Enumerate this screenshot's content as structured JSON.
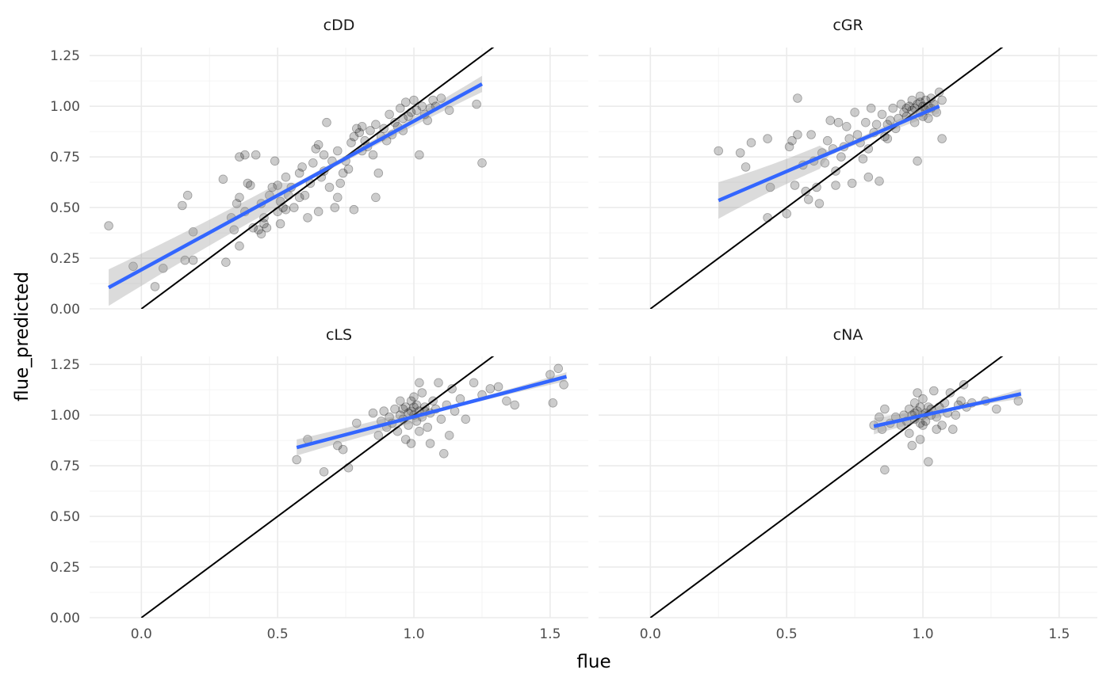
{
  "chart_data": {
    "type": "scatter",
    "xlabel": "flue",
    "ylabel": "flue_predicted",
    "xlim": [
      -0.19,
      1.64
    ],
    "ylim": [
      0.0,
      1.29
    ],
    "x_ticks": [
      0.0,
      0.5,
      1.0,
      1.5
    ],
    "x_tick_labels": [
      "0.0",
      "0.5",
      "1.0",
      "1.5"
    ],
    "y_ticks": [
      0.0,
      0.25,
      0.5,
      0.75,
      1.0,
      1.25
    ],
    "y_tick_labels": [
      "0.00",
      "0.25",
      "0.50",
      "0.75",
      "1.00",
      "1.25"
    ],
    "grid": true,
    "reference_line": {
      "slope": 1,
      "intercept": 0,
      "color": "#000000"
    },
    "fit_color": "#3366ff",
    "band_color": "#999999",
    "point_color": "#000000",
    "panels": [
      {
        "name": "cDD",
        "fit": {
          "x": [
            -0.12,
            1.25
          ],
          "y": [
            0.105,
            1.11
          ]
        },
        "band_width": [
          0.045,
          0.012,
          0.04
        ],
        "points": [
          [
            -0.12,
            0.41
          ],
          [
            -0.03,
            0.21
          ],
          [
            0.05,
            0.11
          ],
          [
            0.08,
            0.2
          ],
          [
            0.15,
            0.51
          ],
          [
            0.17,
            0.56
          ],
          [
            0.16,
            0.24
          ],
          [
            0.19,
            0.24
          ],
          [
            0.19,
            0.38
          ],
          [
            0.3,
            0.64
          ],
          [
            0.31,
            0.23
          ],
          [
            0.34,
            0.39
          ],
          [
            0.35,
            0.52
          ],
          [
            0.36,
            0.55
          ],
          [
            0.36,
            0.75
          ],
          [
            0.38,
            0.76
          ],
          [
            0.36,
            0.31
          ],
          [
            0.38,
            0.48
          ],
          [
            0.39,
            0.62
          ],
          [
            0.4,
            0.61
          ],
          [
            0.41,
            0.4
          ],
          [
            0.42,
            0.76
          ],
          [
            0.43,
            0.39
          ],
          [
            0.44,
            0.52
          ],
          [
            0.44,
            0.37
          ],
          [
            0.45,
            0.45
          ],
          [
            0.46,
            0.4
          ],
          [
            0.47,
            0.56
          ],
          [
            0.48,
            0.6
          ],
          [
            0.49,
            0.73
          ],
          [
            0.5,
            0.48
          ],
          [
            0.5,
            0.61
          ],
          [
            0.51,
            0.42
          ],
          [
            0.51,
            0.53
          ],
          [
            0.52,
            0.5
          ],
          [
            0.53,
            0.65
          ],
          [
            0.54,
            0.56
          ],
          [
            0.55,
            0.6
          ],
          [
            0.56,
            0.5
          ],
          [
            0.58,
            0.67
          ],
          [
            0.59,
            0.7
          ],
          [
            0.6,
            0.56
          ],
          [
            0.61,
            0.45
          ],
          [
            0.62,
            0.62
          ],
          [
            0.63,
            0.72
          ],
          [
            0.64,
            0.79
          ],
          [
            0.65,
            0.81
          ],
          [
            0.65,
            0.48
          ],
          [
            0.66,
            0.65
          ],
          [
            0.67,
            0.76
          ],
          [
            0.68,
            0.92
          ],
          [
            0.69,
            0.6
          ],
          [
            0.7,
            0.73
          ],
          [
            0.71,
            0.5
          ],
          [
            0.72,
            0.78
          ],
          [
            0.73,
            0.62
          ],
          [
            0.74,
            0.67
          ],
          [
            0.75,
            0.73
          ],
          [
            0.76,
            0.69
          ],
          [
            0.77,
            0.82
          ],
          [
            0.78,
            0.85
          ],
          [
            0.78,
            0.49
          ],
          [
            0.79,
            0.89
          ],
          [
            0.8,
            0.87
          ],
          [
            0.81,
            0.78
          ],
          [
            0.82,
            0.83
          ],
          [
            0.83,
            0.8
          ],
          [
            0.84,
            0.88
          ],
          [
            0.85,
            0.76
          ],
          [
            0.86,
            0.91
          ],
          [
            0.86,
            0.55
          ],
          [
            0.87,
            0.67
          ],
          [
            0.88,
            0.85
          ],
          [
            0.89,
            0.89
          ],
          [
            0.9,
            0.83
          ],
          [
            0.91,
            0.96
          ],
          [
            0.92,
            0.86
          ],
          [
            0.93,
            0.92
          ],
          [
            0.94,
            0.9
          ],
          [
            0.95,
            0.99
          ],
          [
            0.96,
            0.94
          ],
          [
            0.97,
            1.02
          ],
          [
            0.98,
            0.95
          ],
          [
            0.99,
            0.97
          ],
          [
            1.0,
            1.03
          ],
          [
            1.01,
            0.98
          ],
          [
            1.02,
            0.76
          ],
          [
            1.03,
            1.0
          ],
          [
            1.04,
            0.96
          ],
          [
            1.05,
            0.93
          ],
          [
            1.06,
            0.99
          ],
          [
            1.07,
            1.03
          ],
          [
            1.08,
            1.0
          ],
          [
            1.1,
            1.04
          ],
          [
            1.13,
            0.98
          ],
          [
            1.23,
            1.01
          ],
          [
            1.25,
            0.72
          ],
          [
            0.33,
            0.45
          ],
          [
            0.58,
            0.55
          ],
          [
            0.96,
            0.88
          ],
          [
            0.72,
            0.55
          ],
          [
            0.45,
            0.42
          ],
          [
            0.67,
            0.68
          ],
          [
            0.81,
            0.9
          ],
          [
            0.53,
            0.49
          ]
        ]
      },
      {
        "name": "cGR",
        "fit": {
          "x": [
            0.25,
            1.06
          ],
          "y": [
            0.535,
            1.0
          ]
        },
        "band_width": [
          0.045,
          0.012,
          0.035
        ],
        "points": [
          [
            0.25,
            0.78
          ],
          [
            0.33,
            0.77
          ],
          [
            0.35,
            0.7
          ],
          [
            0.37,
            0.82
          ],
          [
            0.43,
            0.84
          ],
          [
            0.43,
            0.45
          ],
          [
            0.44,
            0.6
          ],
          [
            0.5,
            0.47
          ],
          [
            0.51,
            0.8
          ],
          [
            0.52,
            0.83
          ],
          [
            0.53,
            0.61
          ],
          [
            0.54,
            0.86
          ],
          [
            0.54,
            1.04
          ],
          [
            0.56,
            0.71
          ],
          [
            0.57,
            0.58
          ],
          [
            0.58,
            0.54
          ],
          [
            0.6,
            0.73
          ],
          [
            0.61,
            0.6
          ],
          [
            0.62,
            0.52
          ],
          [
            0.63,
            0.77
          ],
          [
            0.64,
            0.72
          ],
          [
            0.65,
            0.83
          ],
          [
            0.66,
            0.93
          ],
          [
            0.67,
            0.79
          ],
          [
            0.68,
            0.68
          ],
          [
            0.69,
            0.92
          ],
          [
            0.7,
            0.75
          ],
          [
            0.71,
            0.8
          ],
          [
            0.72,
            0.9
          ],
          [
            0.73,
            0.84
          ],
          [
            0.74,
            0.62
          ],
          [
            0.75,
            0.97
          ],
          [
            0.76,
            0.86
          ],
          [
            0.77,
            0.82
          ],
          [
            0.78,
            0.74
          ],
          [
            0.79,
            0.92
          ],
          [
            0.8,
            0.79
          ],
          [
            0.8,
            0.65
          ],
          [
            0.81,
            0.99
          ],
          [
            0.82,
            0.87
          ],
          [
            0.83,
            0.91
          ],
          [
            0.84,
            0.63
          ],
          [
            0.85,
            0.96
          ],
          [
            0.86,
            0.85
          ],
          [
            0.87,
            0.91
          ],
          [
            0.88,
            0.93
          ],
          [
            0.89,
            0.99
          ],
          [
            0.9,
            0.89
          ],
          [
            0.91,
            0.94
          ],
          [
            0.92,
            1.01
          ],
          [
            0.93,
            0.97
          ],
          [
            0.94,
            0.95
          ],
          [
            0.95,
            1.0
          ],
          [
            0.96,
            0.98
          ],
          [
            0.96,
            1.03
          ],
          [
            0.97,
            0.99
          ],
          [
            0.97,
            0.92
          ],
          [
            0.98,
            1.01
          ],
          [
            0.98,
            0.73
          ],
          [
            0.99,
            0.97
          ],
          [
            0.99,
            1.02
          ],
          [
            1.0,
            1.0
          ],
          [
            1.0,
            0.95
          ],
          [
            1.01,
            1.03
          ],
          [
            1.01,
            0.98
          ],
          [
            1.02,
            1.0
          ],
          [
            1.02,
            0.94
          ],
          [
            1.03,
            1.04
          ],
          [
            1.03,
            0.99
          ],
          [
            1.04,
            1.01
          ],
          [
            1.05,
            0.97
          ],
          [
            1.06,
            1.07
          ],
          [
            1.07,
            1.03
          ],
          [
            1.07,
            0.84
          ],
          [
            0.94,
            0.99
          ],
          [
            0.99,
            1.05
          ],
          [
            0.87,
            0.84
          ],
          [
            0.59,
            0.86
          ],
          [
            0.68,
            0.61
          ]
        ]
      },
      {
        "name": "cLS",
        "fit": {
          "x": [
            0.57,
            1.56
          ],
          "y": [
            0.84,
            1.19
          ]
        },
        "band_width": [
          0.02,
          0.008,
          0.022
        ],
        "points": [
          [
            0.57,
            0.78
          ],
          [
            0.61,
            0.88
          ],
          [
            0.67,
            0.72
          ],
          [
            0.72,
            0.85
          ],
          [
            0.74,
            0.83
          ],
          [
            0.76,
            0.74
          ],
          [
            0.79,
            0.96
          ],
          [
            0.85,
            1.01
          ],
          [
            0.87,
            0.9
          ],
          [
            0.88,
            0.97
          ],
          [
            0.89,
            1.02
          ],
          [
            0.9,
            0.94
          ],
          [
            0.91,
            0.99
          ],
          [
            0.92,
            0.96
          ],
          [
            0.93,
            1.03
          ],
          [
            0.94,
            0.92
          ],
          [
            0.95,
            1.0
          ],
          [
            0.95,
            1.07
          ],
          [
            0.96,
            0.98
          ],
          [
            0.97,
            1.04
          ],
          [
            0.97,
            0.88
          ],
          [
            0.98,
            1.01
          ],
          [
            0.98,
            0.95
          ],
          [
            0.99,
            1.02
          ],
          [
            0.99,
            0.86
          ],
          [
            1.0,
            1.0
          ],
          [
            1.0,
            1.09
          ],
          [
            1.01,
            0.97
          ],
          [
            1.01,
            1.05
          ],
          [
            1.02,
            1.02
          ],
          [
            1.02,
            1.16
          ],
          [
            1.03,
            0.99
          ],
          [
            1.03,
            1.11
          ],
          [
            1.04,
            1.04
          ],
          [
            1.05,
            0.94
          ],
          [
            1.06,
            1.01
          ],
          [
            1.06,
            0.86
          ],
          [
            1.07,
            1.07
          ],
          [
            1.08,
            1.03
          ],
          [
            1.09,
            1.16
          ],
          [
            1.1,
            0.98
          ],
          [
            1.11,
            0.81
          ],
          [
            1.12,
            1.05
          ],
          [
            1.13,
            0.9
          ],
          [
            1.14,
            1.13
          ],
          [
            1.15,
            1.02
          ],
          [
            1.17,
            1.08
          ],
          [
            1.19,
            0.98
          ],
          [
            1.22,
            1.16
          ],
          [
            1.25,
            1.1
          ],
          [
            1.28,
            1.13
          ],
          [
            1.31,
            1.14
          ],
          [
            1.34,
            1.07
          ],
          [
            1.37,
            1.05
          ],
          [
            1.5,
            1.2
          ],
          [
            1.51,
            1.06
          ],
          [
            1.53,
            1.23
          ],
          [
            1.55,
            1.15
          ],
          [
            0.96,
            1.03
          ],
          [
            1.0,
            1.04
          ],
          [
            1.04,
            1.02
          ],
          [
            1.02,
            0.92
          ],
          [
            0.99,
            1.07
          ]
        ]
      },
      {
        "name": "cNA",
        "fit": {
          "x": [
            0.82,
            1.36
          ],
          "y": [
            0.945,
            1.105
          ]
        },
        "band_width": [
          0.02,
          0.008,
          0.025
        ],
        "points": [
          [
            0.82,
            0.95
          ],
          [
            0.84,
            0.99
          ],
          [
            0.85,
            0.93
          ],
          [
            0.86,
            1.03
          ],
          [
            0.86,
            0.73
          ],
          [
            0.88,
            0.96
          ],
          [
            0.9,
            0.99
          ],
          [
            0.92,
            0.95
          ],
          [
            0.93,
            1.0
          ],
          [
            0.94,
            0.97
          ],
          [
            0.95,
            1.03
          ],
          [
            0.95,
            0.91
          ],
          [
            0.96,
            1.0
          ],
          [
            0.96,
            0.85
          ],
          [
            0.97,
            1.06
          ],
          [
            0.97,
            0.98
          ],
          [
            0.98,
            1.02
          ],
          [
            0.98,
            1.11
          ],
          [
            0.99,
            0.96
          ],
          [
            0.99,
            0.88
          ],
          [
            1.0,
            1.0
          ],
          [
            1.0,
            1.08
          ],
          [
            1.01,
            0.97
          ],
          [
            1.02,
            1.04
          ],
          [
            1.02,
            0.77
          ],
          [
            1.03,
            1.0
          ],
          [
            1.04,
            1.12
          ],
          [
            1.05,
            0.99
          ],
          [
            1.06,
            1.04
          ],
          [
            1.07,
            0.95
          ],
          [
            1.08,
            1.06
          ],
          [
            1.09,
            1.01
          ],
          [
            1.1,
            1.11
          ],
          [
            1.11,
            0.93
          ],
          [
            1.12,
            1.0
          ],
          [
            1.13,
            1.05
          ],
          [
            1.14,
            1.07
          ],
          [
            1.15,
            1.15
          ],
          [
            1.16,
            1.04
          ],
          [
            1.18,
            1.06
          ],
          [
            1.23,
            1.07
          ],
          [
            1.27,
            1.03
          ],
          [
            1.35,
            1.07
          ],
          [
            0.99,
            1.04
          ],
          [
            1.01,
            1.01
          ],
          [
            1.0,
            0.95
          ],
          [
            1.03,
            1.03
          ],
          [
            1.05,
            0.93
          ],
          [
            0.97,
            1.01
          ]
        ]
      }
    ]
  }
}
